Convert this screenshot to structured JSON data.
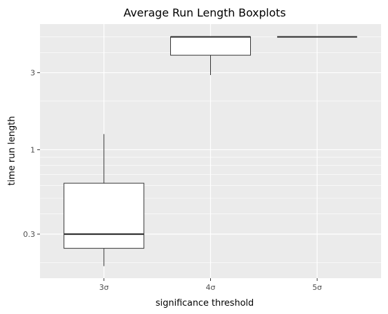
{
  "chart_data": {
    "type": "boxplot",
    "title": "Average Run Length Boxplots",
    "xlabel": "significance threshold",
    "ylabel": "time run length",
    "y_scale": "log10",
    "ylim": [
      0.16,
      6.0
    ],
    "y_ticks": [
      {
        "value": 0.3,
        "label": "0.3"
      },
      {
        "value": 1,
        "label": "1"
      },
      {
        "value": 3,
        "label": "3"
      }
    ],
    "y_minor_ticks": [
      0.2,
      0.4,
      0.5,
      0.6,
      0.7,
      0.8,
      0.9,
      2,
      4,
      5
    ],
    "categories": [
      "3σ",
      "4σ",
      "5σ"
    ],
    "boxes": [
      {
        "category": "3σ",
        "whisker_low": 0.19,
        "q1": 0.245,
        "median": 0.3,
        "q3": 0.62,
        "whisker_high": 1.25
      },
      {
        "category": "4σ",
        "whisker_low": 2.9,
        "q1": 3.85,
        "median": 5.0,
        "q3": 5.0,
        "whisker_high": 5.0
      },
      {
        "category": "5σ",
        "whisker_low": 5.0,
        "q1": 5.0,
        "median": 5.0,
        "q3": 5.0,
        "whisker_high": 5.0
      }
    ],
    "grid": true,
    "legend": "none",
    "colors": {
      "panel_background": "#ebebeb",
      "gridline": "#ffffff",
      "box_fill": "#ffffff",
      "box_stroke": "#333333",
      "tick_text": "#4d4d4d",
      "tick_mark": "#333333"
    }
  }
}
